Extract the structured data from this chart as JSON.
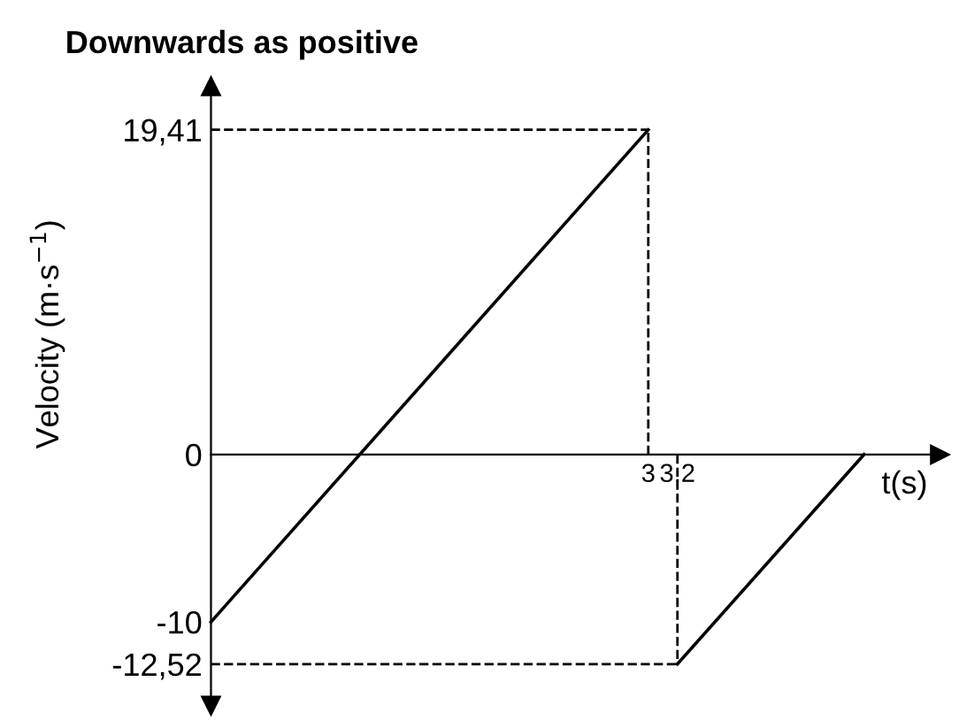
{
  "chart_data": {
    "type": "line",
    "title": "Downwards as positive",
    "xlabel": "t(s)",
    "ylabel": "Velocity (m·s$^{−1}$)",
    "series": [
      {
        "color": "#000000",
        "x": [
          0,
          3
        ],
        "values": [
          -10,
          19.41
        ]
      },
      {
        "color": "#000000",
        "x": [
          3.2,
          4.48
        ],
        "values": [
          -12.52,
          0
        ]
      }
    ],
    "xlim": [
      0,
      5.0
    ],
    "ylim": [
      -15,
      22
    ],
    "xticks": [
      3,
      {
        "value": 3.2,
        "label": "3,2"
      }
    ],
    "yticks": [
      {
        "value": 19.41,
        "label": "19,41"
      },
      0,
      -10,
      {
        "value": -12.52,
        "label": "-12,52"
      }
    ],
    "ref_lines": [
      {
        "axis": "y",
        "value": 19.41,
        "color": "#000000",
        "line_style": "dashed"
      },
      {
        "axis": "x",
        "value": 3,
        "color": "#000000",
        "line_style": "dashed"
      },
      {
        "axis": "x",
        "value": 3.2,
        "color": "#000000",
        "line_style": "dashed"
      },
      {
        "axis": "y",
        "value": -12.52,
        "color": "#000000",
        "line_style": "dashed"
      }
    ],
    "grid": false,
    "marker": "none",
    "line_style": "solid"
  }
}
